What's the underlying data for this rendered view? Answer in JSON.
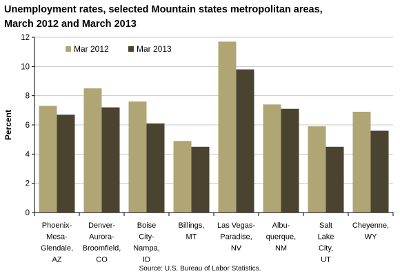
{
  "title_line1": "Unemployment rates, selected Mountain states metropolitan areas,",
  "title_line2": "March 2012 and March 2013",
  "source": "Source: U.S. Bureau of Labor Statistics.",
  "chart_data": {
    "type": "bar",
    "title": "Unemployment rates, selected Mountain states metropolitan areas, March 2012 and March 2013",
    "ylabel": "Percent",
    "xlabel": "",
    "ylim": [
      0,
      12
    ],
    "yticks": [
      0,
      2,
      4,
      6,
      8,
      10,
      12
    ],
    "grid": true,
    "legend": "top-left",
    "categories": [
      [
        "Phoenix-",
        "Mesa-",
        "Glendale,",
        "AZ"
      ],
      [
        "Denver-",
        "Aurora-",
        "Broomfield,",
        "CO"
      ],
      [
        "Boise",
        "City-",
        "Nampa,",
        "ID"
      ],
      [
        "Billings,",
        "MT"
      ],
      [
        "Las Vegas-",
        "Paradise,",
        "NV"
      ],
      [
        "Albu-",
        "querque,",
        "NM"
      ],
      [
        "Salt",
        "Lake",
        "City,",
        "UT"
      ],
      [
        "Cheyenne,",
        "WY"
      ]
    ],
    "series": [
      {
        "name": "Mar 2012",
        "color": "#b0a575",
        "values": [
          7.3,
          8.5,
          7.6,
          4.9,
          11.7,
          7.4,
          5.9,
          6.9
        ]
      },
      {
        "name": "Mar 2013",
        "color": "#4a4330",
        "values": [
          6.7,
          7.2,
          6.1,
          4.5,
          9.8,
          7.1,
          4.5,
          5.6
        ]
      }
    ]
  }
}
